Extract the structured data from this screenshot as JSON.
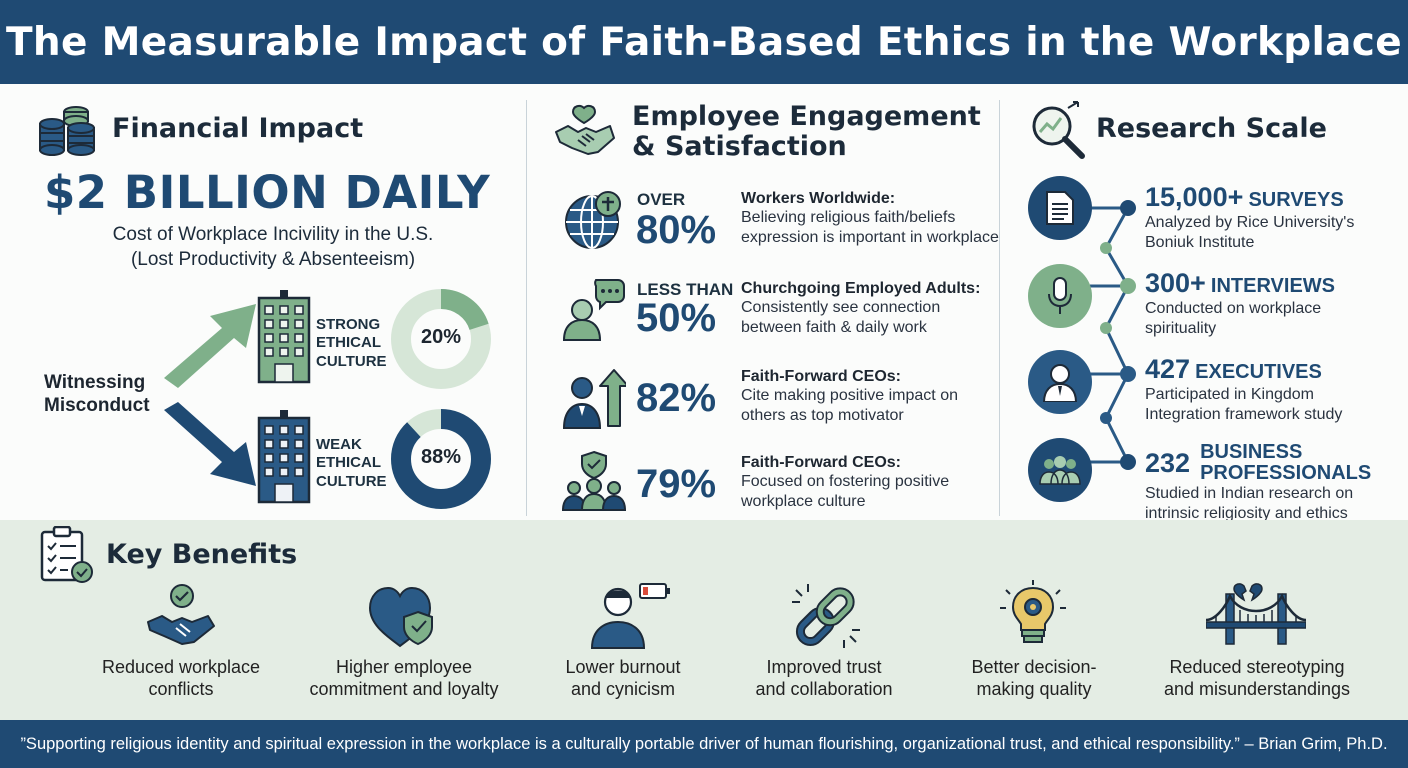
{
  "header": {
    "title": "The Measurable Impact of Faith-Based Ethics in the Workplace"
  },
  "financial": {
    "title": "Financial Impact",
    "headline": "$2 BILLION DAILY",
    "subline1": "Cost of Workplace Incivility in the U.S.",
    "subline2": "(Lost Productivity & Absenteeism)",
    "witness_line1": "Witnessing",
    "witness_line2": "Misconduct",
    "strong": {
      "line1": "STRONG",
      "line2": "ETHICAL",
      "line3": "CULTURE",
      "pct_label": "20%",
      "value": 20
    },
    "weak": {
      "line1": "WEAK",
      "line2": "ETHICAL",
      "line3": "CULTURE",
      "pct_label": "88%",
      "value": 88
    }
  },
  "engagement": {
    "title1": "Employee Engagement",
    "title2": "& Satisfaction",
    "stats": [
      {
        "lead": "OVER",
        "pct": "80%",
        "head": "Workers Worldwide:",
        "desc1": "Believing religious faith/beliefs",
        "desc2": "expression is important in workplace"
      },
      {
        "lead": "LESS THAN",
        "pct": "50%",
        "head": "Churchgoing Employed Adults:",
        "desc1": "Consistently see connection",
        "desc2": "between faith & daily work"
      },
      {
        "lead": "",
        "pct": "82%",
        "head": "Faith-Forward CEOs:",
        "desc1": "Cite making positive impact on",
        "desc2": "others as top motivator"
      },
      {
        "lead": "",
        "pct": "79%",
        "head": "Faith-Forward CEOs:",
        "desc1": "Focused on fostering positive",
        "desc2": "workplace culture"
      }
    ]
  },
  "research": {
    "title": "Research Scale",
    "items": [
      {
        "num": "15,000+",
        "unit": "SURVEYS",
        "desc1": "Analyzed by Rice University's",
        "desc2": "Boniuk Institute"
      },
      {
        "num": "300+",
        "unit": "INTERVIEWS",
        "desc1": "Conducted on workplace",
        "desc2": "spirituality"
      },
      {
        "num": "427",
        "unit": "EXECUTIVES",
        "desc1": "Participated in Kingdom",
        "desc2": "Integration framework study"
      },
      {
        "num": "232",
        "unit": "BUSINESS",
        "unit2": "PROFESSIONALS",
        "desc1": "Studied in Indian research on",
        "desc2": "intrinsic religiosity and ethics"
      }
    ]
  },
  "benefits": {
    "title": "Key Benefits",
    "items": [
      {
        "l1": "Reduced workplace",
        "l2": "conflicts",
        "icon": "handshake-check-icon"
      },
      {
        "l1": "Higher employee",
        "l2": "commitment and loyalty",
        "icon": "heart-shield-icon"
      },
      {
        "l1": "Lower burnout",
        "l2": "and cynicism",
        "icon": "person-battery-icon"
      },
      {
        "l1": "Improved trust",
        "l2": "and collaboration",
        "icon": "chain-link-icon"
      },
      {
        "l1": "Better decision-",
        "l2": "making quality",
        "icon": "lightbulb-gear-icon"
      },
      {
        "l1": "Reduced stereotyping",
        "l2": "and misunderstandings",
        "icon": "bridge-icon"
      }
    ]
  },
  "footer": {
    "quote": "”Supporting religious identity and spiritual expression in the workplace is a culturally portable driver of human flourishing, organizational trust, and ethical responsibility.” – Brian Grim, Ph.D."
  },
  "colors": {
    "navy": "#1f4a73",
    "green": "#7fb08a",
    "pale_green": "#dde9dd"
  }
}
